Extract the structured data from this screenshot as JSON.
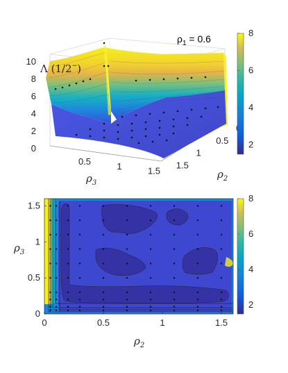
{
  "chart_data": [
    {
      "type": "surface",
      "title": "",
      "annotation_parts": {
        "symbol": "ρ",
        "subscript": "1",
        "rest": " = 0.6"
      },
      "zlabel_parts": {
        "main": "Λ (1/2",
        "sup": "−",
        "tail": ")"
      },
      "xlabel_parts": {
        "symbol": "ρ",
        "subscript": "3"
      },
      "ylabel_parts": {
        "symbol": "ρ",
        "subscript": "2"
      },
      "x_ticks": [
        "0.5",
        "1",
        "1.5"
      ],
      "y_ticks": [
        "0",
        "0.5",
        "1",
        "1.5"
      ],
      "z_ticks": [
        "0",
        "2",
        "4",
        "6",
        "8",
        "10"
      ],
      "xlim": [
        0,
        1.6
      ],
      "ylim": [
        0,
        1.6
      ],
      "zlim": [
        0,
        12
      ],
      "colorbar": {
        "ticks": [
          "2",
          "4",
          "6",
          "8"
        ],
        "range": [
          1.5,
          8
        ],
        "colormap": "parula"
      }
    },
    {
      "type": "contour",
      "title": "",
      "xlabel_parts": {
        "symbol": "ρ",
        "subscript": "2"
      },
      "ylabel_parts": {
        "symbol": "ρ",
        "subscript": "3"
      },
      "x_ticks": [
        "0",
        "0.5",
        "1",
        "1.5"
      ],
      "y_ticks": [
        "0",
        "0.5",
        "1",
        "1.5"
      ],
      "xlim": [
        0,
        1.6
      ],
      "ylim": [
        0,
        1.6
      ],
      "grid_points": [
        0.05,
        0.1,
        0.2,
        0.3,
        0.5,
        0.7,
        0.9,
        1.1,
        1.3,
        1.5
      ],
      "colorbar": {
        "ticks": [
          "2",
          "4",
          "6",
          "8"
        ],
        "range": [
          1.5,
          8
        ],
        "colormap": "parula"
      }
    }
  ]
}
